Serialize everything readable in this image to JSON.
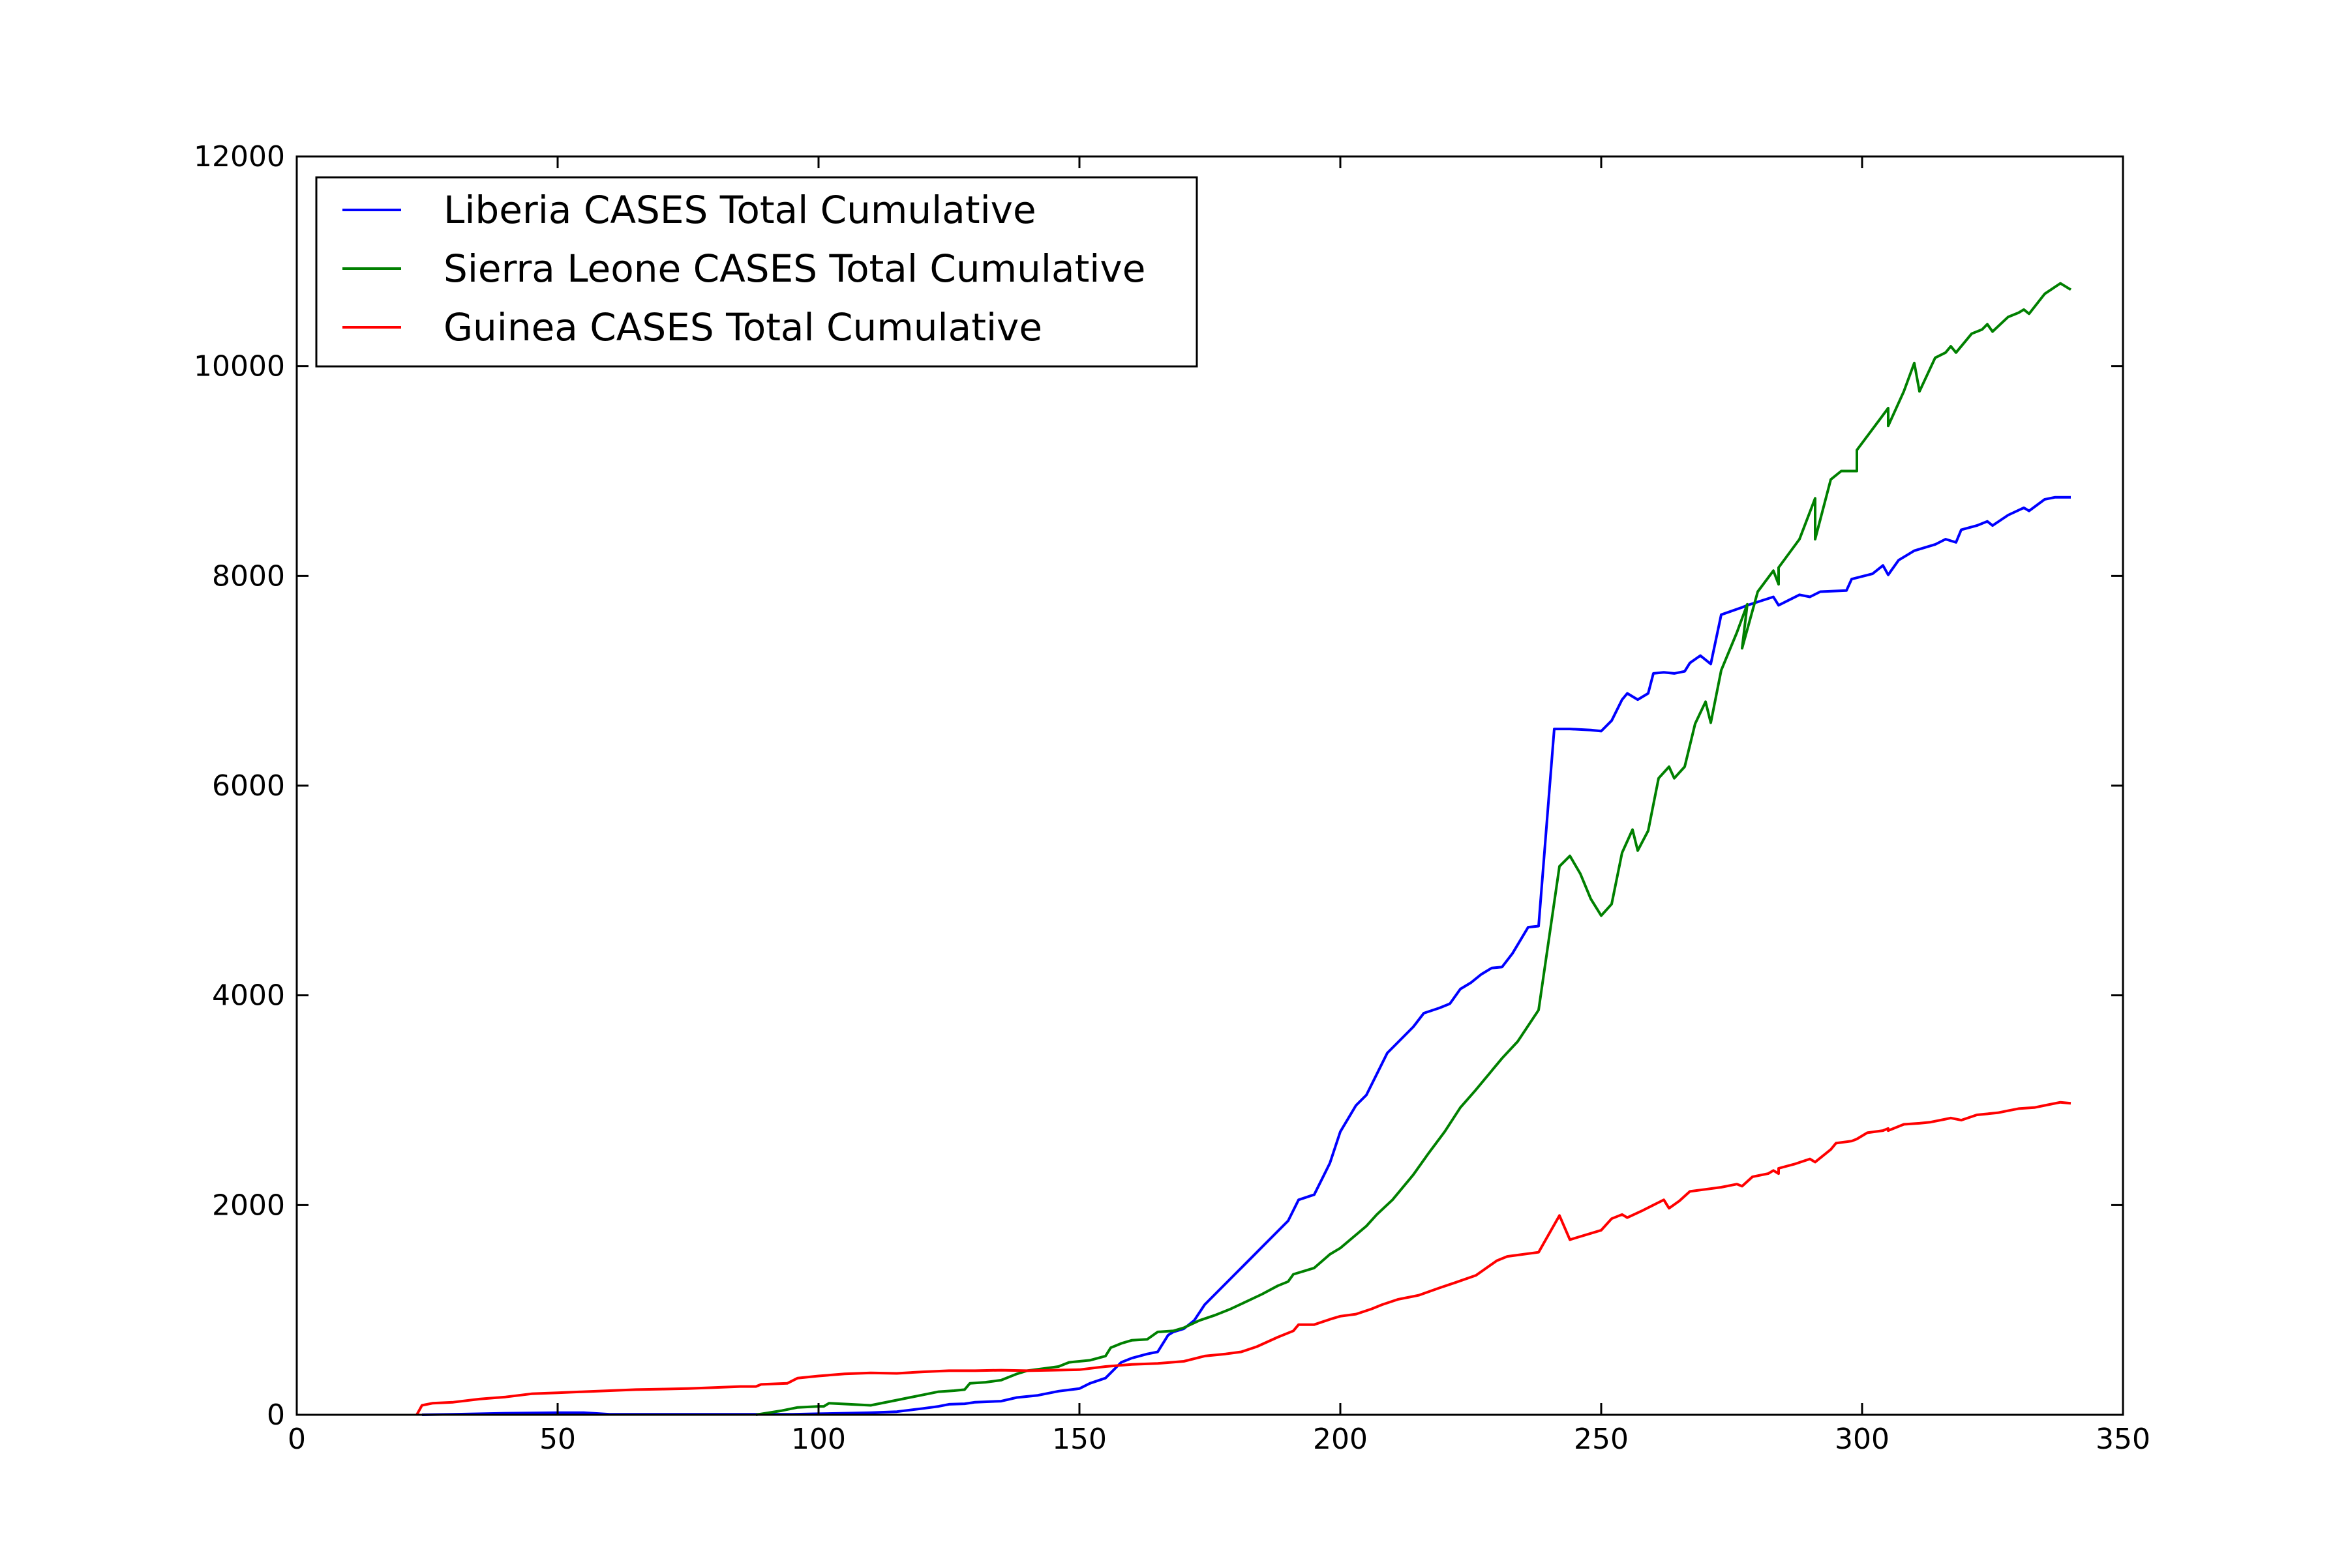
{
  "chart_data": {
    "type": "line",
    "xlim": [
      0,
      350
    ],
    "ylim": [
      0,
      12000
    ],
    "x_ticks": [
      0,
      50,
      100,
      150,
      200,
      250,
      300,
      350
    ],
    "y_ticks": [
      0,
      2000,
      4000,
      6000,
      8000,
      10000,
      12000
    ],
    "grid": false,
    "legend_position": "top-left",
    "series": [
      {
        "name": "Liberia CASES Total Cumulative",
        "color": "#0000ff",
        "points": [
          [
            24,
            0
          ],
          [
            30,
            5
          ],
          [
            40,
            15
          ],
          [
            50,
            20
          ],
          [
            55,
            20
          ],
          [
            60,
            5
          ],
          [
            70,
            5
          ],
          [
            80,
            5
          ],
          [
            88,
            5
          ],
          [
            95,
            5
          ],
          [
            100,
            10
          ],
          [
            105,
            15
          ],
          [
            110,
            20
          ],
          [
            115,
            30
          ],
          [
            120,
            60
          ],
          [
            123,
            80
          ],
          [
            125,
            100
          ],
          [
            128,
            105
          ],
          [
            130,
            120
          ],
          [
            135,
            130
          ],
          [
            138,
            165
          ],
          [
            142,
            185
          ],
          [
            146,
            225
          ],
          [
            150,
            250
          ],
          [
            152,
            300
          ],
          [
            155,
            350
          ],
          [
            156,
            400
          ],
          [
            158,
            500
          ],
          [
            160,
            540
          ],
          [
            163,
            580
          ],
          [
            165,
            600
          ],
          [
            167,
            760
          ],
          [
            168,
            790
          ],
          [
            170,
            820
          ],
          [
            172,
            900
          ],
          [
            174,
            1050
          ],
          [
            177,
            1200
          ],
          [
            180,
            1350
          ],
          [
            183,
            1500
          ],
          [
            186,
            1650
          ],
          [
            189,
            1800
          ],
          [
            190,
            1850
          ],
          [
            192,
            2050
          ],
          [
            195,
            2100
          ],
          [
            198,
            2400
          ],
          [
            200,
            2700
          ],
          [
            203,
            2950
          ],
          [
            205,
            3050
          ],
          [
            207,
            3250
          ],
          [
            209,
            3450
          ],
          [
            212,
            3600
          ],
          [
            214,
            3700
          ],
          [
            216,
            3830
          ],
          [
            219,
            3880
          ],
          [
            221,
            3920
          ],
          [
            223,
            4060
          ],
          [
            225,
            4120
          ],
          [
            227,
            4200
          ],
          [
            229,
            4260
          ],
          [
            231,
            4270
          ],
          [
            233,
            4400
          ],
          [
            236,
            4650
          ],
          [
            238,
            4660
          ],
          [
            241,
            6540
          ],
          [
            244,
            6540
          ],
          [
            248,
            6530
          ],
          [
            250,
            6520
          ],
          [
            252,
            6620
          ],
          [
            254,
            6820
          ],
          [
            255,
            6880
          ],
          [
            257,
            6820
          ],
          [
            259,
            6880
          ],
          [
            260,
            7070
          ],
          [
            262,
            7080
          ],
          [
            264,
            7070
          ],
          [
            266,
            7090
          ],
          [
            267,
            7170
          ],
          [
            269,
            7240
          ],
          [
            271,
            7160
          ],
          [
            273,
            7630
          ],
          [
            277,
            7700
          ],
          [
            278,
            7720
          ],
          [
            283,
            7800
          ],
          [
            284,
            7720
          ],
          [
            286,
            7770
          ],
          [
            288,
            7820
          ],
          [
            290,
            7800
          ],
          [
            292,
            7850
          ],
          [
            297,
            7860
          ],
          [
            298,
            7970
          ],
          [
            302,
            8020
          ],
          [
            304,
            8100
          ],
          [
            305,
            8010
          ],
          [
            307,
            8150
          ],
          [
            310,
            8240
          ],
          [
            314,
            8300
          ],
          [
            316,
            8350
          ],
          [
            318,
            8320
          ],
          [
            319,
            8440
          ],
          [
            322,
            8480
          ],
          [
            324,
            8520
          ],
          [
            325,
            8480
          ],
          [
            328,
            8580
          ],
          [
            331,
            8650
          ],
          [
            332,
            8620
          ],
          [
            335,
            8730
          ],
          [
            337,
            8750
          ],
          [
            340,
            8750
          ]
        ]
      },
      {
        "name": "Sierra Leone CASES Total Cumulative",
        "color": "#008000",
        "points": [
          [
            88,
            0
          ],
          [
            93,
            40
          ],
          [
            96,
            70
          ],
          [
            100,
            80
          ],
          [
            101,
            80
          ],
          [
            102,
            110
          ],
          [
            106,
            100
          ],
          [
            110,
            90
          ],
          [
            115,
            140
          ],
          [
            120,
            190
          ],
          [
            123,
            220
          ],
          [
            126,
            230
          ],
          [
            128,
            240
          ],
          [
            129,
            300
          ],
          [
            132,
            310
          ],
          [
            135,
            330
          ],
          [
            138,
            390
          ],
          [
            140,
            420
          ],
          [
            143,
            440
          ],
          [
            146,
            460
          ],
          [
            148,
            500
          ],
          [
            152,
            520
          ],
          [
            155,
            560
          ],
          [
            156,
            640
          ],
          [
            158,
            680
          ],
          [
            160,
            710
          ],
          [
            163,
            720
          ],
          [
            165,
            790
          ],
          [
            168,
            800
          ],
          [
            170,
            830
          ],
          [
            173,
            900
          ],
          [
            176,
            950
          ],
          [
            179,
            1010
          ],
          [
            182,
            1080
          ],
          [
            185,
            1150
          ],
          [
            188,
            1230
          ],
          [
            190,
            1270
          ],
          [
            191,
            1340
          ],
          [
            193,
            1370
          ],
          [
            195,
            1400
          ],
          [
            198,
            1530
          ],
          [
            200,
            1590
          ],
          [
            205,
            1800
          ],
          [
            207,
            1910
          ],
          [
            210,
            2050
          ],
          [
            214,
            2290
          ],
          [
            217,
            2500
          ],
          [
            220,
            2700
          ],
          [
            223,
            2930
          ],
          [
            226,
            3100
          ],
          [
            228,
            3220
          ],
          [
            231,
            3400
          ],
          [
            234,
            3560
          ],
          [
            238,
            3860
          ],
          [
            242,
            5230
          ],
          [
            244,
            5330
          ],
          [
            246,
            5160
          ],
          [
            248,
            4920
          ],
          [
            250,
            4760
          ],
          [
            252,
            4870
          ],
          [
            254,
            5360
          ],
          [
            256,
            5580
          ],
          [
            257,
            5380
          ],
          [
            259,
            5570
          ],
          [
            261,
            6070
          ],
          [
            263,
            6180
          ],
          [
            264,
            6070
          ],
          [
            266,
            6180
          ],
          [
            268,
            6590
          ],
          [
            270,
            6800
          ],
          [
            271,
            6600
          ],
          [
            273,
            7100
          ],
          [
            276,
            7460
          ],
          [
            278,
            7730
          ],
          [
            277,
            7310
          ],
          [
            280,
            7850
          ],
          [
            283,
            8050
          ],
          [
            284,
            7920
          ],
          [
            284,
            8080
          ],
          [
            288,
            8350
          ],
          [
            291,
            8740
          ],
          [
            291,
            8350
          ],
          [
            294,
            8920
          ],
          [
            296,
            9000
          ],
          [
            299,
            9000
          ],
          [
            299,
            9200
          ],
          [
            302,
            9400
          ],
          [
            305,
            9600
          ],
          [
            305,
            9430
          ],
          [
            308,
            9760
          ],
          [
            310,
            10030
          ],
          [
            311,
            9760
          ],
          [
            314,
            10080
          ],
          [
            316,
            10130
          ],
          [
            317,
            10190
          ],
          [
            318,
            10130
          ],
          [
            321,
            10310
          ],
          [
            323,
            10350
          ],
          [
            324,
            10400
          ],
          [
            325,
            10330
          ],
          [
            328,
            10470
          ],
          [
            330,
            10510
          ],
          [
            331,
            10540
          ],
          [
            332,
            10500
          ],
          [
            335,
            10690
          ],
          [
            338,
            10790
          ],
          [
            340,
            10730
          ]
        ]
      },
      {
        "name": "Guinea CASES Total Cumulative",
        "color": "#ff0000",
        "points": [
          [
            23,
            0
          ],
          [
            24,
            90
          ],
          [
            26,
            110
          ],
          [
            30,
            120
          ],
          [
            35,
            150
          ],
          [
            40,
            170
          ],
          [
            45,
            200
          ],
          [
            50,
            210
          ],
          [
            55,
            220
          ],
          [
            60,
            230
          ],
          [
            65,
            240
          ],
          [
            70,
            245
          ],
          [
            75,
            250
          ],
          [
            80,
            260
          ],
          [
            85,
            270
          ],
          [
            88,
            270
          ],
          [
            89,
            290
          ],
          [
            94,
            300
          ],
          [
            96,
            350
          ],
          [
            100,
            370
          ],
          [
            105,
            390
          ],
          [
            110,
            400
          ],
          [
            115,
            395
          ],
          [
            120,
            410
          ],
          [
            125,
            420
          ],
          [
            130,
            420
          ],
          [
            135,
            425
          ],
          [
            140,
            420
          ],
          [
            145,
            425
          ],
          [
            150,
            430
          ],
          [
            155,
            460
          ],
          [
            160,
            480
          ],
          [
            165,
            490
          ],
          [
            170,
            510
          ],
          [
            174,
            560
          ],
          [
            178,
            580
          ],
          [
            181,
            600
          ],
          [
            184,
            650
          ],
          [
            188,
            740
          ],
          [
            191,
            800
          ],
          [
            192,
            860
          ],
          [
            195,
            860
          ],
          [
            198,
            910
          ],
          [
            200,
            940
          ],
          [
            203,
            960
          ],
          [
            206,
            1010
          ],
          [
            208,
            1050
          ],
          [
            211,
            1100
          ],
          [
            215,
            1140
          ],
          [
            219,
            1210
          ],
          [
            222,
            1260
          ],
          [
            226,
            1330
          ],
          [
            230,
            1470
          ],
          [
            232,
            1510
          ],
          [
            238,
            1550
          ],
          [
            242,
            1900
          ],
          [
            244,
            1670
          ],
          [
            250,
            1760
          ],
          [
            252,
            1870
          ],
          [
            254,
            1910
          ],
          [
            255,
            1880
          ],
          [
            258,
            1950
          ],
          [
            260,
            2000
          ],
          [
            262,
            2050
          ],
          [
            263,
            1970
          ],
          [
            265,
            2040
          ],
          [
            267,
            2130
          ],
          [
            270,
            2150
          ],
          [
            273,
            2170
          ],
          [
            275,
            2190
          ],
          [
            276,
            2200
          ],
          [
            277,
            2180
          ],
          [
            279,
            2270
          ],
          [
            282,
            2300
          ],
          [
            283,
            2330
          ],
          [
            284,
            2300
          ],
          [
            284,
            2350
          ],
          [
            287,
            2390
          ],
          [
            290,
            2440
          ],
          [
            291,
            2410
          ],
          [
            294,
            2530
          ],
          [
            295,
            2590
          ],
          [
            298,
            2610
          ],
          [
            299,
            2630
          ],
          [
            301,
            2690
          ],
          [
            304,
            2710
          ],
          [
            305,
            2730
          ],
          [
            305,
            2710
          ],
          [
            308,
            2770
          ],
          [
            311,
            2780
          ],
          [
            313,
            2790
          ],
          [
            316,
            2820
          ],
          [
            317,
            2830
          ],
          [
            319,
            2810
          ],
          [
            322,
            2860
          ],
          [
            326,
            2880
          ],
          [
            328,
            2900
          ],
          [
            330,
            2920
          ],
          [
            333,
            2930
          ],
          [
            335,
            2950
          ],
          [
            338,
            2980
          ],
          [
            340,
            2970
          ]
        ]
      }
    ]
  }
}
